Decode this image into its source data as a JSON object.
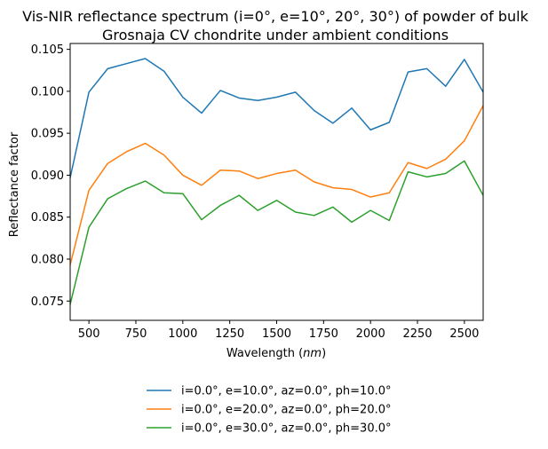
{
  "chart_data": {
    "type": "line",
    "title": "Vis-NIR reflectance spectrum (i=0°, e=10°, 20°, 30°) of powder of bulk Grosnaja CV chondrite under ambient conditions",
    "title_lines": [
      "Vis-NIR reflectance spectrum (i=0°, e=10°, 20°, 30°) of powder of bulk",
      "Grosnaja CV chondrite under ambient conditions"
    ],
    "xlabel": "Wavelength ($nm$)",
    "xlabel_main": "Wavelength (",
    "xlabel_unit": "nm",
    "xlabel_end": ")",
    "ylabel": "Reflectance factor",
    "xlim": [
      400,
      2600
    ],
    "ylim": [
      0.0727,
      0.1057
    ],
    "xticks": [
      500,
      750,
      1000,
      1250,
      1500,
      1750,
      2000,
      2250,
      2500
    ],
    "yticks": [
      0.075,
      0.08,
      0.085,
      0.09,
      0.095,
      0.1,
      0.105
    ],
    "xtick_labels": [
      "500",
      "750",
      "1000",
      "1250",
      "1500",
      "1750",
      "2000",
      "2250",
      "2500"
    ],
    "ytick_labels": [
      "0.075",
      "0.080",
      "0.085",
      "0.090",
      "0.095",
      "0.100",
      "0.105"
    ],
    "grid": false,
    "legend_placement": "below",
    "x": [
      400,
      500,
      600,
      700,
      800,
      900,
      1000,
      1100,
      1200,
      1300,
      1400,
      1500,
      1600,
      1700,
      1800,
      1900,
      2000,
      2100,
      2200,
      2300,
      2400,
      2500,
      2600
    ],
    "series": [
      {
        "name": "i=0.0°, e=10.0°, az=0.0°, ph=10.0°",
        "color": "#1f77b4",
        "values": [
          0.0897,
          0.0999,
          0.1027,
          0.1033,
          0.1039,
          0.1024,
          0.0993,
          0.0974,
          0.1001,
          0.0992,
          0.0989,
          0.0993,
          0.0999,
          0.0977,
          0.0962,
          0.098,
          0.0954,
          0.0963,
          0.1023,
          0.1027,
          0.1006,
          0.1038,
          0.0999
        ]
      },
      {
        "name": "i=0.0°, e=20.0°, az=0.0°, ph=20.0°",
        "color": "#ff7f0e",
        "values": [
          0.0793,
          0.0882,
          0.0914,
          0.0928,
          0.0938,
          0.0924,
          0.09,
          0.0888,
          0.0906,
          0.0905,
          0.0896,
          0.0902,
          0.0906,
          0.0892,
          0.0885,
          0.0883,
          0.0874,
          0.0879,
          0.0915,
          0.0908,
          0.0919,
          0.0941,
          0.0983
        ]
      },
      {
        "name": "i=0.0°, e=30.0°, az=0.0°, ph=30.0°",
        "color": "#2ca02c",
        "values": [
          0.0746,
          0.0838,
          0.0872,
          0.0884,
          0.0893,
          0.0879,
          0.0878,
          0.0847,
          0.0864,
          0.0876,
          0.0858,
          0.087,
          0.0856,
          0.0852,
          0.0862,
          0.0844,
          0.0858,
          0.0846,
          0.0904,
          0.0898,
          0.0902,
          0.0917,
          0.0876
        ]
      }
    ]
  }
}
